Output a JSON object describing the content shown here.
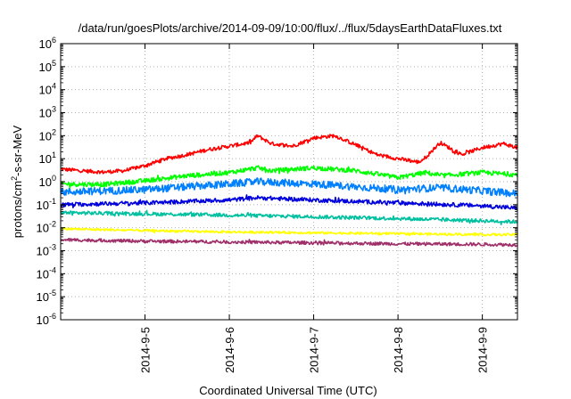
{
  "chart_data": {
    "type": "line",
    "title": "/data/run/goesPlots/archive/2014-09-09/10:00/flux/../flux/5daysEarthDataFluxes.txt",
    "xlabel": "Coordinated Universal Time (UTC)",
    "ylabel_base": "protons/cm",
    "ylabel_sup": "2",
    "ylabel_rest": "-s-sr-MeV",
    "y_scale": "log",
    "ylim": [
      1e-06,
      1000000
    ],
    "xlim": [
      "2014-09-04T00:00",
      "2014-09-09T10:00"
    ],
    "grid": true,
    "legend": "none",
    "x_ticks": [
      "2014-9-5",
      "2014-9-6",
      "2014-9-7",
      "2014-9-8",
      "2014-9-9"
    ],
    "y_ticks": [
      {
        "base": "10",
        "exp": "-6",
        "value": 1e-06
      },
      {
        "base": "10",
        "exp": "-5",
        "value": 1e-05
      },
      {
        "base": "10",
        "exp": "-4",
        "value": 0.0001
      },
      {
        "base": "10",
        "exp": "-3",
        "value": 0.001
      },
      {
        "base": "10",
        "exp": "-2",
        "value": 0.01
      },
      {
        "base": "10",
        "exp": "-1",
        "value": 0.1
      },
      {
        "base": "10",
        "exp": "0",
        "value": 1
      },
      {
        "base": "10",
        "exp": "1",
        "value": 10
      },
      {
        "base": "10",
        "exp": "2",
        "value": 100
      },
      {
        "base": "10",
        "exp": "3",
        "value": 1000
      },
      {
        "base": "10",
        "exp": "4",
        "value": 10000
      },
      {
        "base": "10",
        "exp": "5",
        "value": 100000
      },
      {
        "base": "10",
        "exp": "6",
        "value": 1000000
      }
    ],
    "series": [
      {
        "color": "#ff0000",
        "noise": 0.08,
        "x": [
          "2014-09-04T00:00",
          "2014-09-04T06:00",
          "2014-09-04T12:00",
          "2014-09-04T18:00",
          "2014-09-05T00:00",
          "2014-09-05T06:00",
          "2014-09-05T12:00",
          "2014-09-05T18:00",
          "2014-09-06T00:00",
          "2014-09-06T06:00",
          "2014-09-06T08:00",
          "2014-09-06T12:00",
          "2014-09-06T18:00",
          "2014-09-07T00:00",
          "2014-09-07T06:00",
          "2014-09-07T12:00",
          "2014-09-07T18:00",
          "2014-09-08T00:00",
          "2014-09-08T06:00",
          "2014-09-08T08:00",
          "2014-09-08T12:00",
          "2014-09-08T18:00",
          "2014-09-09T00:00",
          "2014-09-09T06:00",
          "2014-09-09T10:00"
        ],
        "y": [
          3.5,
          3.0,
          2.6,
          3.0,
          5,
          10,
          15,
          25,
          35,
          50,
          100,
          45,
          35,
          80,
          100,
          40,
          15,
          10,
          7,
          12,
          50,
          15,
          30,
          45,
          30
        ]
      },
      {
        "color": "#00ff00",
        "noise": 0.1,
        "x": [
          "2014-09-04T00:00",
          "2014-09-04T12:00",
          "2014-09-05T00:00",
          "2014-09-05T12:00",
          "2014-09-06T00:00",
          "2014-09-06T08:00",
          "2014-09-06T12:00",
          "2014-09-07T00:00",
          "2014-09-07T12:00",
          "2014-09-08T00:00",
          "2014-09-08T08:00",
          "2014-09-08T12:00",
          "2014-09-09T00:00",
          "2014-09-09T10:00"
        ],
        "y": [
          0.8,
          0.75,
          1.1,
          1.8,
          2.5,
          4.0,
          3.0,
          4.0,
          3.0,
          1.5,
          2.5,
          1.8,
          2.5,
          2.0
        ]
      },
      {
        "color": "#0080ff",
        "noise": 0.16,
        "x": [
          "2014-09-04T00:00",
          "2014-09-05T00:00",
          "2014-09-05T12:00",
          "2014-09-06T00:00",
          "2014-09-06T08:00",
          "2014-09-07T00:00",
          "2014-09-07T12:00",
          "2014-09-08T00:00",
          "2014-09-08T12:00",
          "2014-09-09T00:00",
          "2014-09-09T10:00"
        ],
        "y": [
          0.35,
          0.45,
          0.6,
          0.8,
          1.0,
          0.8,
          0.6,
          0.45,
          0.55,
          0.4,
          0.3
        ]
      },
      {
        "color": "#0000dd",
        "noise": 0.09,
        "x": [
          "2014-09-04T00:00",
          "2014-09-05T00:00",
          "2014-09-06T00:00",
          "2014-09-06T08:00",
          "2014-09-07T00:00",
          "2014-09-08T00:00",
          "2014-09-09T00:00",
          "2014-09-09T10:00"
        ],
        "y": [
          0.1,
          0.12,
          0.16,
          0.2,
          0.16,
          0.12,
          0.09,
          0.07
        ]
      },
      {
        "color": "#00c0a0",
        "noise": 0.08,
        "x": [
          "2014-09-04T00:00",
          "2014-09-05T00:00",
          "2014-09-06T00:00",
          "2014-09-07T00:00",
          "2014-09-08T00:00",
          "2014-09-09T00:00",
          "2014-09-09T10:00"
        ],
        "y": [
          0.045,
          0.04,
          0.035,
          0.03,
          0.025,
          0.02,
          0.018
        ]
      },
      {
        "color": "#ffff00",
        "noise": 0.05,
        "x": [
          "2014-09-04T00:00",
          "2014-09-05T00:00",
          "2014-09-06T00:00",
          "2014-09-07T00:00",
          "2014-09-08T00:00",
          "2014-09-09T00:00",
          "2014-09-09T10:00"
        ],
        "y": [
          0.009,
          0.0075,
          0.0065,
          0.006,
          0.0055,
          0.005,
          0.005
        ]
      },
      {
        "color": "#a0306a",
        "noise": 0.07,
        "x": [
          "2014-09-04T00:00",
          "2014-09-05T00:00",
          "2014-09-06T00:00",
          "2014-09-07T00:00",
          "2014-09-08T00:00",
          "2014-09-09T00:00",
          "2014-09-09T10:00"
        ],
        "y": [
          0.003,
          0.0026,
          0.0024,
          0.0022,
          0.002,
          0.0019,
          0.0018
        ]
      }
    ]
  }
}
